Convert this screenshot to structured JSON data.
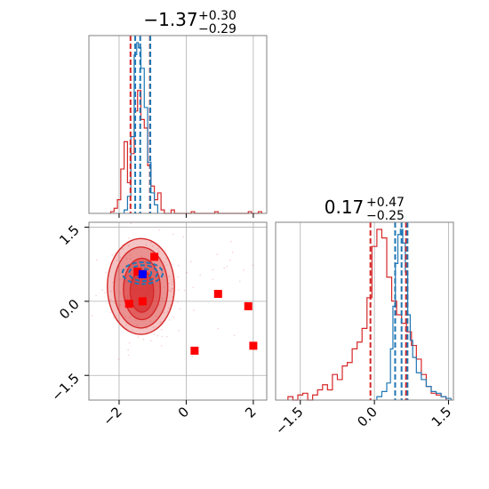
{
  "chart_data": {
    "type": "corner",
    "parameters": [
      {
        "title_main": "−1.37",
        "title_sup": "+0.30",
        "title_sub": "−0.29",
        "range": [
          -2.9,
          2.4
        ],
        "ticks": [
          -2,
          0,
          2
        ],
        "tick_labels": [
          "−2",
          "0",
          "2"
        ],
        "quantiles_red": [
          -1.66,
          -1.08
        ],
        "quantiles_blue": [
          -1.52,
          -1.37,
          -1.07
        ]
      },
      {
        "title_main": "0.17",
        "title_sup": "+0.47",
        "title_sub": "−0.25",
        "range": [
          -2.0,
          1.6
        ],
        "ticks": [
          -1.5,
          0.0,
          1.5
        ],
        "tick_labels": [
          "−1.5",
          "0.0",
          "1.5"
        ],
        "quantiles_red": [
          -0.08,
          0.64
        ],
        "quantiles_blue": [
          0.42,
          0.55,
          0.67
        ]
      }
    ],
    "hist1_red": [
      [
        -2.2,
        0.01
      ],
      [
        -2.1,
        0.03
      ],
      [
        -2.0,
        0.08
      ],
      [
        -1.9,
        0.26
      ],
      [
        -1.8,
        0.42
      ],
      [
        -1.7,
        0.18
      ],
      [
        -1.6,
        0.35
      ],
      [
        -1.5,
        0.6
      ],
      [
        -1.4,
        0.72
      ],
      [
        -1.3,
        0.55
      ],
      [
        -1.2,
        0.5
      ],
      [
        -1.1,
        0.28
      ],
      [
        -1.0,
        0.16
      ],
      [
        -0.9,
        0.08
      ],
      [
        -0.8,
        0.12
      ],
      [
        -0.7,
        0.02
      ],
      [
        -0.4,
        0.02
      ],
      [
        0.2,
        0.01
      ],
      [
        0.9,
        0.01
      ],
      [
        1.9,
        0.01
      ],
      [
        2.2,
        0.01
      ]
    ],
    "hist1_blue": [
      [
        -1.8,
        0.02
      ],
      [
        -1.7,
        0.1
      ],
      [
        -1.6,
        0.45
      ],
      [
        -1.5,
        0.93
      ],
      [
        -1.45,
        1.0
      ],
      [
        -1.4,
        0.97
      ],
      [
        -1.3,
        0.85
      ],
      [
        -1.2,
        0.62
      ],
      [
        -1.1,
        0.3
      ],
      [
        -1.0,
        0.12
      ],
      [
        -0.9,
        0.05
      ]
    ],
    "hist2_red": [
      [
        -1.7,
        0.02
      ],
      [
        -1.5,
        0.03
      ],
      [
        -1.4,
        0.04
      ],
      [
        -1.2,
        0.03
      ],
      [
        -1.1,
        0.06
      ],
      [
        -1.0,
        0.09
      ],
      [
        -0.9,
        0.06
      ],
      [
        -0.8,
        0.15
      ],
      [
        -0.7,
        0.12
      ],
      [
        -0.6,
        0.2
      ],
      [
        -0.5,
        0.22
      ],
      [
        -0.4,
        0.3
      ],
      [
        -0.3,
        0.34
      ],
      [
        -0.2,
        0.42
      ],
      [
        -0.1,
        0.6
      ],
      [
        0.0,
        0.9
      ],
      [
        0.1,
        1.0
      ],
      [
        0.2,
        0.95
      ],
      [
        0.3,
        0.72
      ],
      [
        0.4,
        0.58
      ],
      [
        0.5,
        0.5
      ],
      [
        0.6,
        0.45
      ],
      [
        0.7,
        0.4
      ],
      [
        0.8,
        0.32
      ],
      [
        0.9,
        0.24
      ],
      [
        1.0,
        0.15
      ],
      [
        1.1,
        0.08
      ],
      [
        1.2,
        0.04
      ],
      [
        1.3,
        0.03
      ],
      [
        1.4,
        0.02
      ]
    ],
    "hist2_blue": [
      [
        0.1,
        0.02
      ],
      [
        0.2,
        0.05
      ],
      [
        0.3,
        0.1
      ],
      [
        0.35,
        0.3
      ],
      [
        0.4,
        0.55
      ],
      [
        0.45,
        0.8
      ],
      [
        0.5,
        0.97
      ],
      [
        0.55,
        1.0
      ],
      [
        0.6,
        0.92
      ],
      [
        0.65,
        0.75
      ],
      [
        0.7,
        0.5
      ],
      [
        0.75,
        0.35
      ],
      [
        0.8,
        0.25
      ],
      [
        0.9,
        0.16
      ],
      [
        1.0,
        0.12
      ],
      [
        1.1,
        0.08
      ],
      [
        1.2,
        0.05
      ],
      [
        1.3,
        0.04
      ],
      [
        1.4,
        0.02
      ],
      [
        1.5,
        0.01
      ]
    ],
    "squares_red": [
      [
        -1.45,
        0.6
      ],
      [
        -1.3,
        0.55
      ],
      [
        -0.95,
        0.9
      ],
      [
        -1.7,
        -0.05
      ],
      [
        -1.3,
        0.0
      ],
      [
        0.95,
        0.15
      ],
      [
        1.85,
        -0.1
      ],
      [
        2.0,
        -0.9
      ],
      [
        0.25,
        -1.0
      ]
    ],
    "squares_blue": [
      [
        -1.3,
        0.55
      ]
    ],
    "contours_red": [
      {
        "cx": -1.35,
        "cy": 0.3,
        "rx": 1.0,
        "ry": 0.97,
        "opacity": 0.28
      },
      {
        "cx": -1.35,
        "cy": 0.28,
        "rx": 0.8,
        "ry": 0.82,
        "opacity": 0.32
      },
      {
        "cx": -1.32,
        "cy": 0.25,
        "rx": 0.55,
        "ry": 0.62,
        "opacity": 0.45
      },
      {
        "cx": -1.32,
        "cy": 0.2,
        "rx": 0.35,
        "ry": 0.42,
        "opacity": 0.6
      }
    ],
    "contours_blue": [
      {
        "cx": -1.3,
        "cy": 0.57,
        "rx": 0.6,
        "ry": 0.22
      },
      {
        "cx": -1.28,
        "cy": 0.57,
        "rx": 0.42,
        "ry": 0.16
      },
      {
        "cx": -1.26,
        "cy": 0.57,
        "rx": 0.22,
        "ry": 0.09
      }
    ],
    "colors": {
      "red": "#d62728",
      "blue": "#1f77b4",
      "grid": "#b0b0b0"
    }
  }
}
